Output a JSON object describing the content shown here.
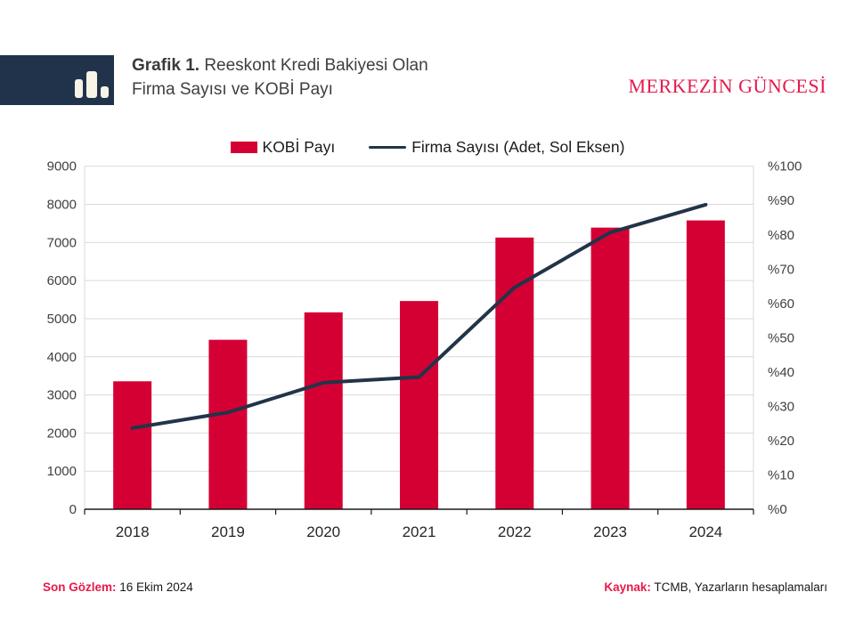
{
  "header": {
    "title_prefix": "Grafik 1.",
    "title_line1_rest": " Reeskont Kredi Bakiyesi Olan",
    "title_line2": "Firma Sayısı ve KOBİ Payı",
    "brand": "MERKEZİN GÜNCESİ"
  },
  "footer": {
    "observation_label": "Son Gözlem:",
    "observation_value": " 16 Ekim 2024",
    "source_label": "Kaynak:",
    "source_value": " TCMB, Yazarların hesaplamaları"
  },
  "colors": {
    "bar": "#d40034",
    "line": "#223448",
    "grid": "#d9d9d9",
    "axis": "#1a1a1a",
    "tick_text": "#404040",
    "x_text": "#262626",
    "brand_red": "#e31b4d",
    "logo_bg": "#20334a"
  },
  "chart_data": {
    "type": "bar+line combo",
    "title": "Grafik 1. Reeskont Kredi Bakiyesi Olan Firma Sayısı ve KOBİ Payı",
    "categories": [
      "2018",
      "2019",
      "2020",
      "2021",
      "2022",
      "2023",
      "2024"
    ],
    "series": [
      {
        "name": "KOBİ Payı",
        "type": "bar",
        "axis": "right",
        "unit": "%",
        "values": [
          37.3,
          49.4,
          57.4,
          60.7,
          79.2,
          82.1,
          84.2
        ]
      },
      {
        "name": "Firma Sayısı (Adet, Sol Eksen)",
        "type": "line",
        "axis": "left",
        "unit": "adet",
        "values": [
          2130,
          2540,
          3320,
          3470,
          5820,
          7260,
          7990
        ]
      }
    ],
    "left_axis": {
      "min": 0,
      "max": 9000,
      "step": 1000,
      "tick_labels": [
        "0",
        "1000",
        "2000",
        "3000",
        "4000",
        "5000",
        "6000",
        "7000",
        "8000",
        "9000"
      ]
    },
    "right_axis": {
      "min": 0,
      "max": 100,
      "step": 10,
      "tick_labels": [
        "%0",
        "%10",
        "%20",
        "%30",
        "%40",
        "%50",
        "%60",
        "%70",
        "%80",
        "%90",
        "%100"
      ]
    },
    "grid": "horizontal",
    "legend_position": "top-center"
  }
}
